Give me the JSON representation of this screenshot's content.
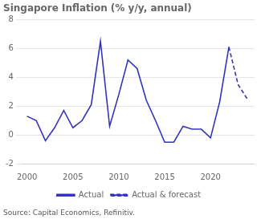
{
  "chart_data": {
    "type": "line",
    "title": "Singapore Inflation (% y/y, annual)",
    "annotations": [
      "Source: Capital Economics, Refinitiv."
    ],
    "series": [
      {
        "name": "Actual",
        "color": "#3333bb",
        "line_style": "solid",
        "x": [
          2000,
          2001,
          2002,
          2003,
          2004,
          2005,
          2006,
          2007,
          2008,
          2009,
          2010,
          2011,
          2012,
          2013,
          2014,
          2015,
          2016,
          2017,
          2018,
          2019,
          2020,
          2021,
          2022
        ],
        "values": [
          1.3,
          1.0,
          -0.4,
          0.5,
          1.7,
          0.5,
          1.0,
          2.1,
          6.5,
          0.6,
          2.8,
          5.2,
          4.6,
          2.4,
          1.0,
          -0.5,
          -0.5,
          0.6,
          0.4,
          0.4,
          -0.2,
          2.3,
          6.1
        ]
      },
      {
        "name": "Actual & forecast",
        "color": "#3333bb",
        "line_style": "dashed",
        "x": [
          2022,
          2023,
          2024
        ],
        "values": [
          6.1,
          3.5,
          2.5
        ]
      }
    ],
    "xlim": [
      1999.5,
      2024.8
    ],
    "xticks": [
      2000,
      2005,
      2010,
      2015,
      2020
    ],
    "ylim": [
      -2,
      8
    ],
    "yticks": [
      -2,
      0,
      2,
      4,
      6,
      8
    ],
    "grid": "y",
    "legend": "bottom"
  }
}
